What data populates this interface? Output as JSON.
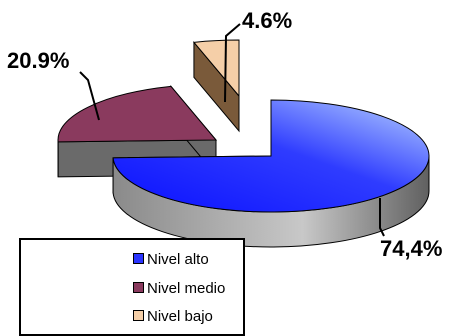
{
  "chart_data": {
    "type": "pie",
    "style": "3d-exploded",
    "categories": [
      "Nivel alto",
      "Nivel medio",
      "Nivel bajo"
    ],
    "values": [
      74.4,
      20.9,
      4.6
    ],
    "data_labels": [
      "74,4%",
      "20.9%",
      "4.6%"
    ],
    "colors": [
      "#2a34ff",
      "#8a3a5e",
      "#f5cfa8"
    ],
    "side_colors": [
      "#767676",
      "#6a6a6a",
      "#7a5a3a"
    ],
    "legend": {
      "position": "bottom-left",
      "items": [
        {
          "label": "Nivel alto",
          "color": "#2a34ff"
        },
        {
          "label": "Nivel medio",
          "color": "#8a3a5e"
        },
        {
          "label": "Nivel bajo",
          "color": "#f5cfa8"
        }
      ]
    },
    "title": "",
    "grid": false
  }
}
